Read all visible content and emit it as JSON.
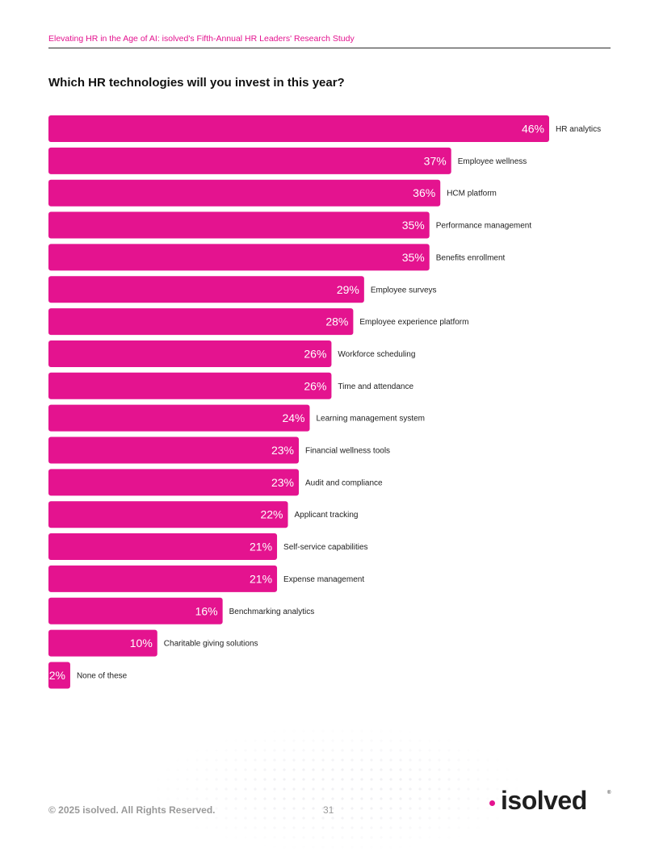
{
  "header": {
    "title": "Elevating HR in the Age of AI: isolved's Fifth-Annual HR Leaders' Research Study"
  },
  "chart_data": {
    "type": "bar",
    "orientation": "horizontal",
    "title": "Which HR technologies will you invest in this year?",
    "bar_color": "#e4138f",
    "value_suffix": "%",
    "categories": [
      "HR analytics",
      "Employee wellness",
      "HCM platform",
      "Performance management",
      "Benefits enrollment",
      "Employee surveys",
      "Employee experience platform",
      "Workforce scheduling",
      "Time and attendance",
      "Learning management system",
      "Financial wellness tools",
      "Audit and compliance",
      "Applicant tracking",
      "Self-service capabilities",
      "Expense management",
      "Benchmarking analytics",
      "Charitable giving solutions",
      "None of these"
    ],
    "values": [
      46,
      37,
      36,
      35,
      35,
      29,
      28,
      26,
      26,
      24,
      23,
      23,
      22,
      21,
      21,
      16,
      10,
      2
    ]
  },
  "footer": {
    "copyright": "© 2025 isolved. All Rights Reserved.",
    "page_number": "31"
  },
  "logo": {
    "text": "isolved",
    "registered": "®",
    "accent_color": "#e4138f"
  }
}
